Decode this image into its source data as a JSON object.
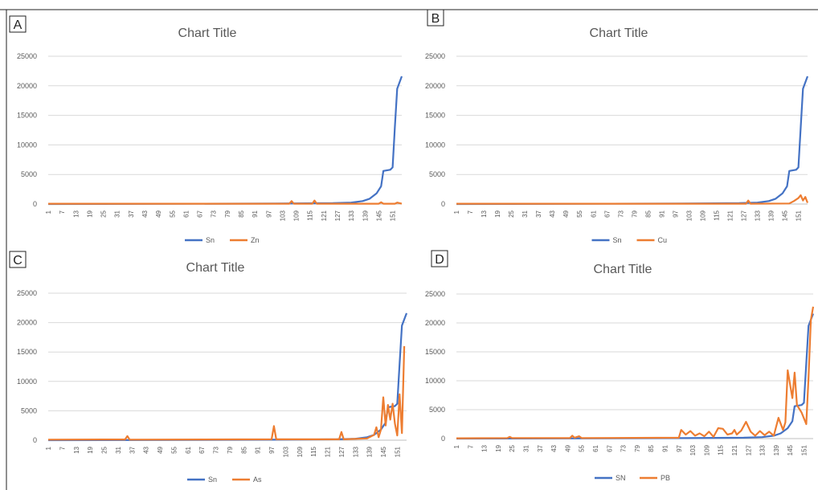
{
  "panels": [
    {
      "letter": "A"
    },
    {
      "letter": "B"
    },
    {
      "letter": "C"
    },
    {
      "letter": "D"
    }
  ],
  "x_tick_labels": [
    "1",
    "7",
    "13",
    "19",
    "25",
    "31",
    "37",
    "43",
    "49",
    "55",
    "61",
    "67",
    "73",
    "79",
    "85",
    "91",
    "97",
    "103",
    "109",
    "115",
    "121",
    "127",
    "133",
    "139",
    "145",
    "151"
  ],
  "colors": {
    "series1": "#4472C4",
    "series2": "#ED7D31",
    "grid": "#D9D9D9",
    "text": "#595959"
  },
  "chart_data": [
    {
      "type": "line",
      "title": "Chart Title",
      "ylim": [
        0,
        25000
      ],
      "yticks": [
        0,
        5000,
        10000,
        15000,
        20000,
        25000
      ],
      "grid": true,
      "legend": "bottom",
      "series": [
        {
          "name": "Sn",
          "points": [
            [
              1,
              0
            ],
            [
              100,
              80
            ],
            [
              125,
              150
            ],
            [
              133,
              250
            ],
            [
              138,
              500
            ],
            [
              141,
              900
            ],
            [
              144,
              1800
            ],
            [
              146,
              3000
            ],
            [
              147,
              5600
            ],
            [
              150,
              5800
            ],
            [
              151,
              6200
            ],
            [
              152,
              13000
            ],
            [
              153,
              19500
            ],
            [
              155,
              21600
            ]
          ]
        },
        {
          "name": "Zn",
          "points": [
            [
              1,
              50
            ],
            [
              106,
              60
            ],
            [
              107,
              500
            ],
            [
              108,
              60
            ],
            [
              116,
              60
            ],
            [
              117,
              600
            ],
            [
              118,
              60
            ],
            [
              145,
              60
            ],
            [
              146,
              300
            ],
            [
              147,
              60
            ],
            [
              152,
              60
            ],
            [
              153,
              250
            ],
            [
              155,
              60
            ]
          ]
        }
      ]
    },
    {
      "type": "line",
      "title": "Chart Title",
      "ylim": [
        0,
        25000
      ],
      "yticks": [
        0,
        5000,
        10000,
        15000,
        20000,
        25000
      ],
      "grid": true,
      "legend": "bottom",
      "series": [
        {
          "name": "Sn",
          "points": [
            [
              1,
              0
            ],
            [
              100,
              80
            ],
            [
              125,
              150
            ],
            [
              133,
              250
            ],
            [
              138,
              500
            ],
            [
              141,
              900
            ],
            [
              144,
              1800
            ],
            [
              146,
              3000
            ],
            [
              147,
              5600
            ],
            [
              150,
              5800
            ],
            [
              151,
              6200
            ],
            [
              152,
              13000
            ],
            [
              153,
              19500
            ],
            [
              155,
              21600
            ]
          ]
        },
        {
          "name": "Cu",
          "points": [
            [
              1,
              50
            ],
            [
              128,
              60
            ],
            [
              129,
              600
            ],
            [
              130,
              60
            ],
            [
              147,
              100
            ],
            [
              149,
              500
            ],
            [
              151,
              1000
            ],
            [
              152,
              1500
            ],
            [
              153,
              600
            ],
            [
              154,
              1200
            ],
            [
              155,
              200
            ]
          ]
        }
      ]
    },
    {
      "type": "line",
      "title": "Chart Title",
      "ylim": [
        0,
        25000
      ],
      "yticks": [
        0,
        5000,
        10000,
        15000,
        20000,
        25000
      ],
      "grid": true,
      "legend": "bottom",
      "series": [
        {
          "name": "Sn",
          "points": [
            [
              1,
              0
            ],
            [
              100,
              80
            ],
            [
              125,
              150
            ],
            [
              133,
              250
            ],
            [
              138,
              500
            ],
            [
              141,
              900
            ],
            [
              144,
              1800
            ],
            [
              146,
              3000
            ],
            [
              147,
              5600
            ],
            [
              150,
              5800
            ],
            [
              151,
              6200
            ],
            [
              152,
              13000
            ],
            [
              153,
              19500
            ],
            [
              155,
              21600
            ]
          ]
        },
        {
          "name": "As",
          "points": [
            [
              1,
              100
            ],
            [
              34,
              120
            ],
            [
              35,
              700
            ],
            [
              36,
              100
            ],
            [
              97,
              150
            ],
            [
              98,
              2400
            ],
            [
              99,
              150
            ],
            [
              126,
              150
            ],
            [
              127,
              1400
            ],
            [
              128,
              150
            ],
            [
              138,
              300
            ],
            [
              141,
              900
            ],
            [
              142,
              2200
            ],
            [
              143,
              500
            ],
            [
              144,
              1800
            ],
            [
              145,
              7300
            ],
            [
              146,
              2500
            ],
            [
              147,
              6000
            ],
            [
              148,
              3500
            ],
            [
              149,
              6200
            ],
            [
              150,
              2800
            ],
            [
              151,
              800
            ],
            [
              152,
              7800
            ],
            [
              153,
              1200
            ],
            [
              154,
              16000
            ]
          ]
        }
      ]
    },
    {
      "type": "line",
      "title": "Chart Title",
      "ylim": [
        0,
        25000
      ],
      "yticks": [
        0,
        5000,
        10000,
        15000,
        20000,
        25000
      ],
      "grid": true,
      "legend": "bottom",
      "series": [
        {
          "name": "SN",
          "points": [
            [
              1,
              0
            ],
            [
              100,
              80
            ],
            [
              125,
              150
            ],
            [
              133,
              250
            ],
            [
              138,
              500
            ],
            [
              141,
              900
            ],
            [
              144,
              1800
            ],
            [
              146,
              3000
            ],
            [
              147,
              5600
            ],
            [
              150,
              5800
            ],
            [
              151,
              6200
            ],
            [
              152,
              13000
            ],
            [
              153,
              19500
            ],
            [
              155,
              21600
            ]
          ]
        },
        {
          "name": "PB",
          "points": [
            [
              1,
              50
            ],
            [
              23,
              100
            ],
            [
              24,
              300
            ],
            [
              25,
              100
            ],
            [
              50,
              100
            ],
            [
              51,
              500
            ],
            [
              52,
              150
            ],
            [
              54,
              400
            ],
            [
              55,
              100
            ],
            [
              97,
              150
            ],
            [
              98,
              1500
            ],
            [
              100,
              700
            ],
            [
              102,
              1300
            ],
            [
              104,
              500
            ],
            [
              106,
              900
            ],
            [
              108,
              400
            ],
            [
              110,
              1200
            ],
            [
              112,
              300
            ],
            [
              114,
              1800
            ],
            [
              116,
              1700
            ],
            [
              118,
              700
            ],
            [
              120,
              900
            ],
            [
              121,
              1500
            ],
            [
              122,
              700
            ],
            [
              124,
              1400
            ],
            [
              126,
              2900
            ],
            [
              128,
              1200
            ],
            [
              130,
              500
            ],
            [
              132,
              1300
            ],
            [
              134,
              600
            ],
            [
              136,
              1200
            ],
            [
              138,
              500
            ],
            [
              140,
              3600
            ],
            [
              142,
              1500
            ],
            [
              143,
              2800
            ],
            [
              144,
              11800
            ],
            [
              146,
              7000
            ],
            [
              147,
              11400
            ],
            [
              148,
              5800
            ],
            [
              150,
              4500
            ],
            [
              151,
              3500
            ],
            [
              152,
              2500
            ],
            [
              153,
              10500
            ],
            [
              154,
              20500
            ],
            [
              155,
              22800
            ]
          ]
        }
      ]
    }
  ]
}
